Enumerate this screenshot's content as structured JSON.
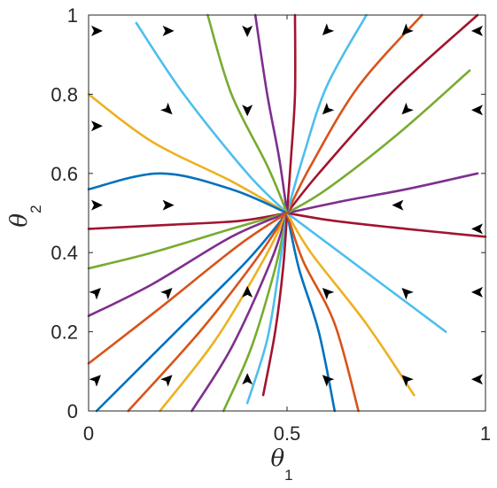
{
  "chart_data": {
    "type": "line",
    "subtype": "phase-portrait",
    "title": "",
    "xlabel": {
      "symbol": "θ",
      "subscript": "1"
    },
    "ylabel": {
      "symbol": "θ",
      "subscript": "2"
    },
    "xlim": [
      0,
      1
    ],
    "ylim": [
      0,
      1
    ],
    "xticks": [
      0,
      0.5,
      1
    ],
    "yticks": [
      0,
      0.2,
      0.4,
      0.6,
      0.8,
      1
    ],
    "xtick_labels": [
      "0",
      "0.5",
      "1"
    ],
    "ytick_labels": [
      "0",
      "0.2",
      "0.4",
      "0.6",
      "0.8",
      "1"
    ],
    "grid": false,
    "legend": "none",
    "fixed_point": [
      0.5,
      0.5
    ],
    "series": [
      {
        "color": "#0072BD",
        "points": [
          [
            0.02,
            0.0
          ],
          [
            0.22,
            0.2
          ],
          [
            0.4,
            0.38
          ],
          [
            0.5,
            0.5
          ]
        ]
      },
      {
        "color": "#D95319",
        "points": [
          [
            0.1,
            0.0
          ],
          [
            0.28,
            0.2
          ],
          [
            0.42,
            0.38
          ],
          [
            0.5,
            0.5
          ]
        ]
      },
      {
        "color": "#EDB120",
        "points": [
          [
            0.18,
            0.0
          ],
          [
            0.32,
            0.18
          ],
          [
            0.44,
            0.38
          ],
          [
            0.5,
            0.5
          ]
        ]
      },
      {
        "color": "#7E2F8E",
        "points": [
          [
            0.26,
            0.0
          ],
          [
            0.36,
            0.16
          ],
          [
            0.46,
            0.38
          ],
          [
            0.5,
            0.5
          ]
        ]
      },
      {
        "color": "#77AC30",
        "points": [
          [
            0.34,
            0.0
          ],
          [
            0.41,
            0.16
          ],
          [
            0.47,
            0.36
          ],
          [
            0.5,
            0.5
          ]
        ]
      },
      {
        "color": "#4DBEEE",
        "points": [
          [
            0.4,
            0.02
          ],
          [
            0.45,
            0.18
          ],
          [
            0.48,
            0.36
          ],
          [
            0.5,
            0.5
          ]
        ]
      },
      {
        "color": "#A2142F",
        "points": [
          [
            0.44,
            0.04
          ],
          [
            0.47,
            0.2
          ],
          [
            0.49,
            0.36
          ],
          [
            0.5,
            0.5
          ]
        ]
      },
      {
        "color": "#0072BD",
        "points": [
          [
            0.62,
            0.0
          ],
          [
            0.58,
            0.2
          ],
          [
            0.53,
            0.36
          ],
          [
            0.5,
            0.5
          ]
        ]
      },
      {
        "color": "#D95319",
        "points": [
          [
            0.68,
            0.0
          ],
          [
            0.62,
            0.22
          ],
          [
            0.54,
            0.38
          ],
          [
            0.5,
            0.5
          ]
        ]
      },
      {
        "color": "#EDB120",
        "points": [
          [
            0.82,
            0.04
          ],
          [
            0.7,
            0.22
          ],
          [
            0.56,
            0.4
          ],
          [
            0.5,
            0.5
          ]
        ]
      },
      {
        "color": "#4DBEEE",
        "points": [
          [
            0.9,
            0.2
          ],
          [
            0.74,
            0.32
          ],
          [
            0.58,
            0.44
          ],
          [
            0.5,
            0.5
          ]
        ]
      },
      {
        "color": "#A2142F",
        "points": [
          [
            1.0,
            0.44
          ],
          [
            0.8,
            0.46
          ],
          [
            0.62,
            0.48
          ],
          [
            0.5,
            0.5
          ]
        ]
      },
      {
        "color": "#7E2F8E",
        "points": [
          [
            0.98,
            0.6
          ],
          [
            0.8,
            0.56
          ],
          [
            0.64,
            0.53
          ],
          [
            0.5,
            0.5
          ]
        ]
      },
      {
        "color": "#77AC30",
        "points": [
          [
            0.96,
            0.86
          ],
          [
            0.78,
            0.7
          ],
          [
            0.6,
            0.56
          ],
          [
            0.5,
            0.5
          ]
        ]
      },
      {
        "color": "#A2142F",
        "points": [
          [
            0.98,
            1.0
          ],
          [
            0.76,
            0.8
          ],
          [
            0.58,
            0.6
          ],
          [
            0.5,
            0.5
          ]
        ]
      },
      {
        "color": "#D95319",
        "points": [
          [
            0.84,
            1.0
          ],
          [
            0.68,
            0.82
          ],
          [
            0.56,
            0.62
          ],
          [
            0.5,
            0.5
          ]
        ]
      },
      {
        "color": "#4DBEEE",
        "points": [
          [
            0.7,
            1.0
          ],
          [
            0.6,
            0.82
          ],
          [
            0.54,
            0.64
          ],
          [
            0.5,
            0.5
          ]
        ]
      },
      {
        "color": "#A2142F",
        "points": [
          [
            0.52,
            1.0
          ],
          [
            0.52,
            0.8
          ],
          [
            0.51,
            0.64
          ],
          [
            0.5,
            0.5
          ]
        ]
      },
      {
        "color": "#7E2F8E",
        "points": [
          [
            0.42,
            1.0
          ],
          [
            0.45,
            0.8
          ],
          [
            0.48,
            0.64
          ],
          [
            0.5,
            0.5
          ]
        ]
      },
      {
        "color": "#77AC30",
        "points": [
          [
            0.3,
            1.0
          ],
          [
            0.36,
            0.8
          ],
          [
            0.45,
            0.62
          ],
          [
            0.5,
            0.5
          ]
        ]
      },
      {
        "color": "#4DBEEE",
        "points": [
          [
            0.12,
            0.98
          ],
          [
            0.24,
            0.8
          ],
          [
            0.4,
            0.6
          ],
          [
            0.5,
            0.5
          ]
        ]
      },
      {
        "color": "#EDB120",
        "points": [
          [
            0.0,
            0.8
          ],
          [
            0.16,
            0.68
          ],
          [
            0.36,
            0.58
          ],
          [
            0.5,
            0.5
          ]
        ]
      },
      {
        "color": "#0072BD",
        "points": [
          [
            0.0,
            0.56
          ],
          [
            0.18,
            0.6
          ],
          [
            0.36,
            0.56
          ],
          [
            0.5,
            0.5
          ]
        ]
      },
      {
        "color": "#A2142F",
        "points": [
          [
            0.0,
            0.46
          ],
          [
            0.2,
            0.47
          ],
          [
            0.38,
            0.48
          ],
          [
            0.5,
            0.5
          ]
        ]
      },
      {
        "color": "#77AC30",
        "points": [
          [
            0.0,
            0.36
          ],
          [
            0.16,
            0.4
          ],
          [
            0.36,
            0.46
          ],
          [
            0.5,
            0.5
          ]
        ]
      },
      {
        "color": "#7E2F8E",
        "points": [
          [
            0.0,
            0.24
          ],
          [
            0.16,
            0.32
          ],
          [
            0.36,
            0.44
          ],
          [
            0.5,
            0.5
          ]
        ]
      },
      {
        "color": "#D95319",
        "points": [
          [
            0.0,
            0.12
          ],
          [
            0.18,
            0.26
          ],
          [
            0.38,
            0.42
          ],
          [
            0.5,
            0.5
          ]
        ]
      }
    ],
    "arrows": [
      {
        "x": 0.02,
        "y": 0.96,
        "direction": "right"
      },
      {
        "x": 0.2,
        "y": 0.96,
        "direction": "right"
      },
      {
        "x": 0.4,
        "y": 0.96,
        "direction": "down"
      },
      {
        "x": 0.6,
        "y": 0.96,
        "direction": "down-left"
      },
      {
        "x": 0.8,
        "y": 0.96,
        "direction": "down-left"
      },
      {
        "x": 0.98,
        "y": 0.96,
        "direction": "left"
      },
      {
        "x": 0.02,
        "y": 0.72,
        "direction": "right"
      },
      {
        "x": 0.2,
        "y": 0.76,
        "direction": "down-right"
      },
      {
        "x": 0.4,
        "y": 0.76,
        "direction": "down"
      },
      {
        "x": 0.6,
        "y": 0.76,
        "direction": "down-left"
      },
      {
        "x": 0.8,
        "y": 0.76,
        "direction": "down-left"
      },
      {
        "x": 0.98,
        "y": 0.76,
        "direction": "left"
      },
      {
        "x": 0.02,
        "y": 0.52,
        "direction": "right"
      },
      {
        "x": 0.2,
        "y": 0.52,
        "direction": "right"
      },
      {
        "x": 0.78,
        "y": 0.52,
        "direction": "left"
      },
      {
        "x": 0.98,
        "y": 0.46,
        "direction": "left"
      },
      {
        "x": 0.02,
        "y": 0.3,
        "direction": "up-right"
      },
      {
        "x": 0.2,
        "y": 0.3,
        "direction": "up-right"
      },
      {
        "x": 0.4,
        "y": 0.3,
        "direction": "up"
      },
      {
        "x": 0.6,
        "y": 0.3,
        "direction": "up-left"
      },
      {
        "x": 0.8,
        "y": 0.3,
        "direction": "up-left"
      },
      {
        "x": 0.98,
        "y": 0.3,
        "direction": "left"
      },
      {
        "x": 0.02,
        "y": 0.08,
        "direction": "up-right"
      },
      {
        "x": 0.2,
        "y": 0.08,
        "direction": "up-right"
      },
      {
        "x": 0.4,
        "y": 0.08,
        "direction": "up"
      },
      {
        "x": 0.6,
        "y": 0.08,
        "direction": "up-left"
      },
      {
        "x": 0.8,
        "y": 0.08,
        "direction": "up-left"
      },
      {
        "x": 0.98,
        "y": 0.08,
        "direction": "left"
      }
    ]
  }
}
